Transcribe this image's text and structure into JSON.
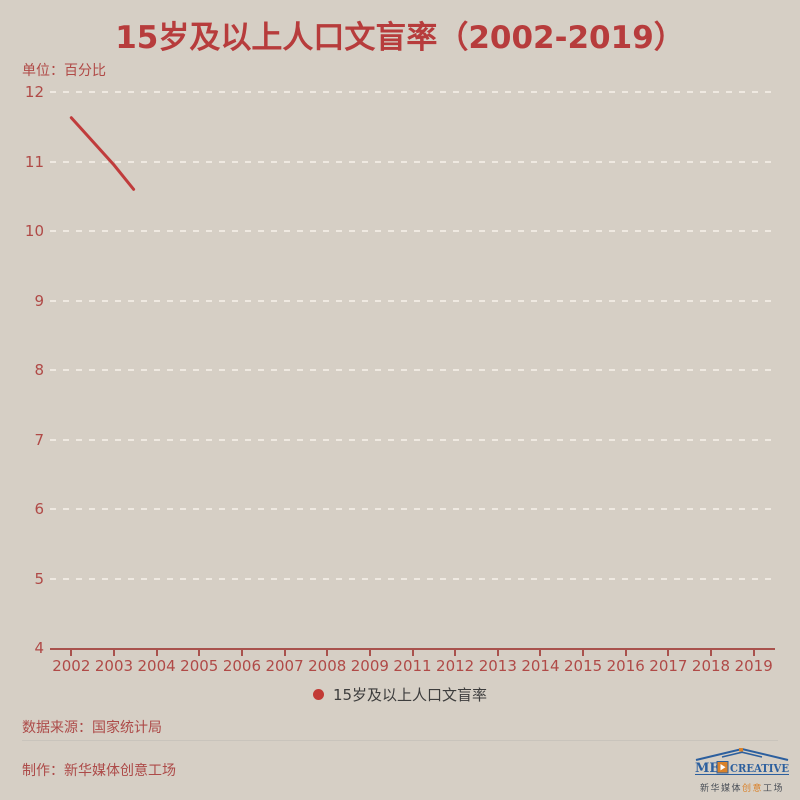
{
  "title": "15岁及以上人口文盲率（2002-2019）",
  "unit_label": "单位：百分比",
  "legend": {
    "label": "15岁及以上人口文盲率",
    "marker_color": "#c23a35"
  },
  "footer": {
    "source": "数据来源：国家统计局",
    "producer": "制作：新华媒体创意工场"
  },
  "logo": {
    "text_en_left": "ME",
    "text_en_right": "CREATIVE",
    "text_cn_left": "新华媒体",
    "text_cn_accent": "创意",
    "text_cn_right": "工场",
    "blue": "#2c5f9e",
    "orange": "#d9822b"
  },
  "colors": {
    "background": "#d6cfc5",
    "title_red": "#b73c3c",
    "axis_text_red": "#b04a47",
    "axis_line_red": "#a9524d",
    "gridline": "#efe9e1",
    "line_red": "#c03c3c",
    "legend_text": "#3d3d3d",
    "divider": "#c9c4bc"
  },
  "chart_data": {
    "type": "line",
    "title": "15岁及以上人口文盲率（2002-2019）",
    "unit": "百分比",
    "x_categories": [
      "2002",
      "2003",
      "2004",
      "2005",
      "2006",
      "2007",
      "2008",
      "2009",
      "2011",
      "2012",
      "2013",
      "2014",
      "2015",
      "2016",
      "2017",
      "2018",
      "2019"
    ],
    "y_ticks": [
      12,
      11,
      10,
      9,
      8,
      7,
      6,
      5,
      4
    ],
    "ylim": [
      4,
      12
    ],
    "grid": "horizontal dashed gridlines on",
    "legend_position": "bottom",
    "note": "line is only partially drawn (animation frame): segment from 2002 through 2003, stopping about halfway toward 2004",
    "series": [
      {
        "name": "15岁及以上人口文盲率",
        "color": "#c03c3c",
        "points": [
          {
            "x": "2002",
            "y": 11.63
          },
          {
            "x": "2003",
            "y": 10.95
          }
        ],
        "partial_end": {
          "after": "2003",
          "fraction": 0.46,
          "y": 10.6
        }
      }
    ]
  }
}
